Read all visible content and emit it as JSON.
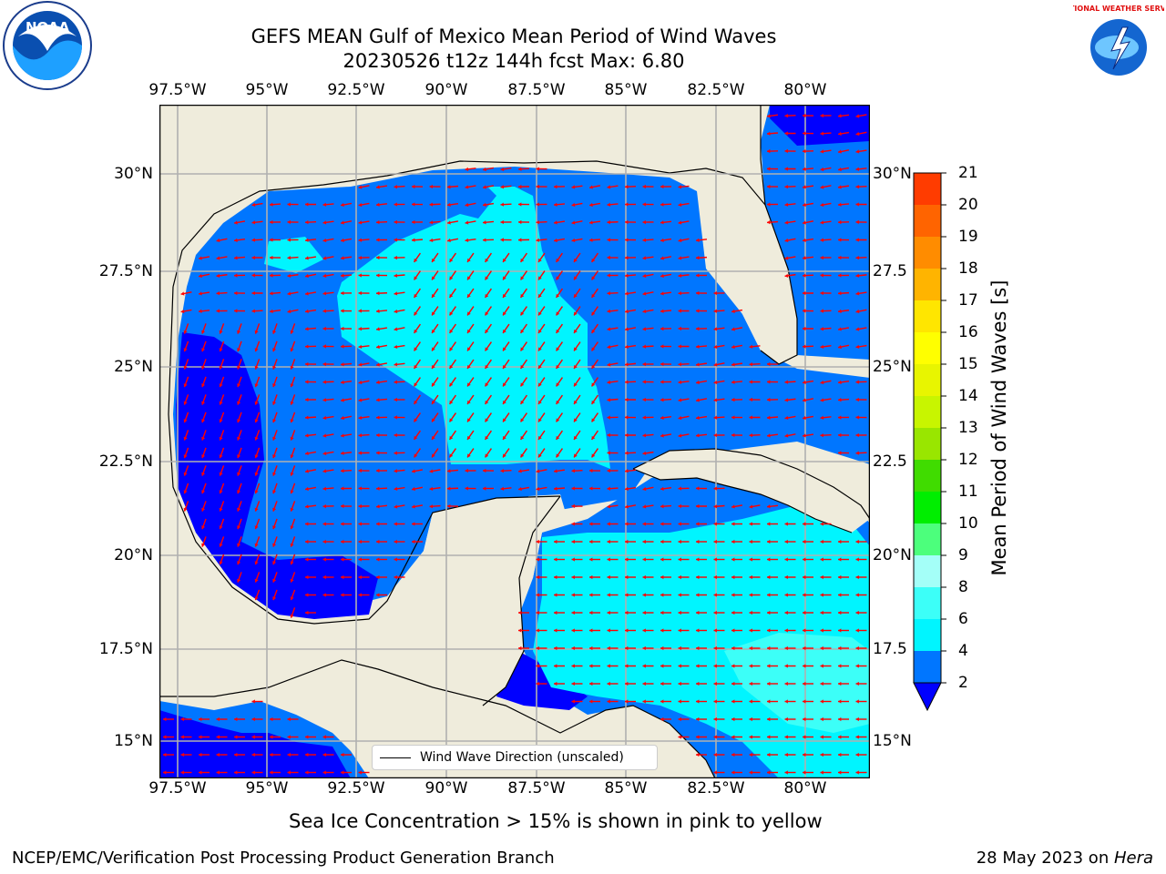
{
  "title": {
    "line1": "GEFS MEAN Gulf of Mexico Mean Period of Wind Waves",
    "line2": "20230526 t12z 144h fcst   Max: 6.80"
  },
  "axes": {
    "lon_labels": [
      "97.5°W",
      "95°W",
      "92.5°W",
      "90°W",
      "87.5°W",
      "85°W",
      "82.5°W",
      "80°W"
    ],
    "lat_labels_left": [
      "30°N",
      "27.5°N",
      "25°N",
      "22.5°N",
      "20°N",
      "17.5°N",
      "15°N"
    ],
    "lat_labels_right": [
      "30°N",
      "27.5",
      "25°N",
      "22.5",
      "20°N",
      "17.5",
      "15°N"
    ]
  },
  "colorbar": {
    "title": "Mean Period of Wind Waves [s]",
    "tick_labels": [
      "2",
      "4",
      "6",
      "8",
      "9",
      "10",
      "11",
      "12",
      "13",
      "14",
      "15",
      "16",
      "17",
      "18",
      "19",
      "20",
      "21"
    ],
    "level_colors": [
      "#0076ff",
      "#00f5ff",
      "#3cfff8",
      "#a4fff8",
      "#4cff7c",
      "#00ee00",
      "#40dc00",
      "#99e600",
      "#c8f500",
      "#e8f500",
      "#ffff00",
      "#ffe600",
      "#ffb400",
      "#ff8c00",
      "#ff6400",
      "#ff3c00",
      "#ff0000"
    ],
    "under_color": "#0000ff"
  },
  "legend": {
    "label": "Wind Wave Direction (unscaled)"
  },
  "note": "Sea Ice Concentration > 15% is shown in pink to yellow",
  "footer": {
    "left": "NCEP/EMC/Verification Post Processing Product Generation Branch",
    "right_prefix": "28 May 2023 on ",
    "right_host": "Hera"
  },
  "logos": {
    "left": "NOAA",
    "right": "NATIONAL WEATHER SERVICE"
  },
  "colors": {
    "land": "#efecdc",
    "band_lt2": "#0000ff",
    "band_2_4": "#0076ff",
    "band_4_6": "#00f5ff",
    "band_6_8": "#3cfff8",
    "arrow": "#ff0000",
    "grid": "#b0b0b0"
  }
}
